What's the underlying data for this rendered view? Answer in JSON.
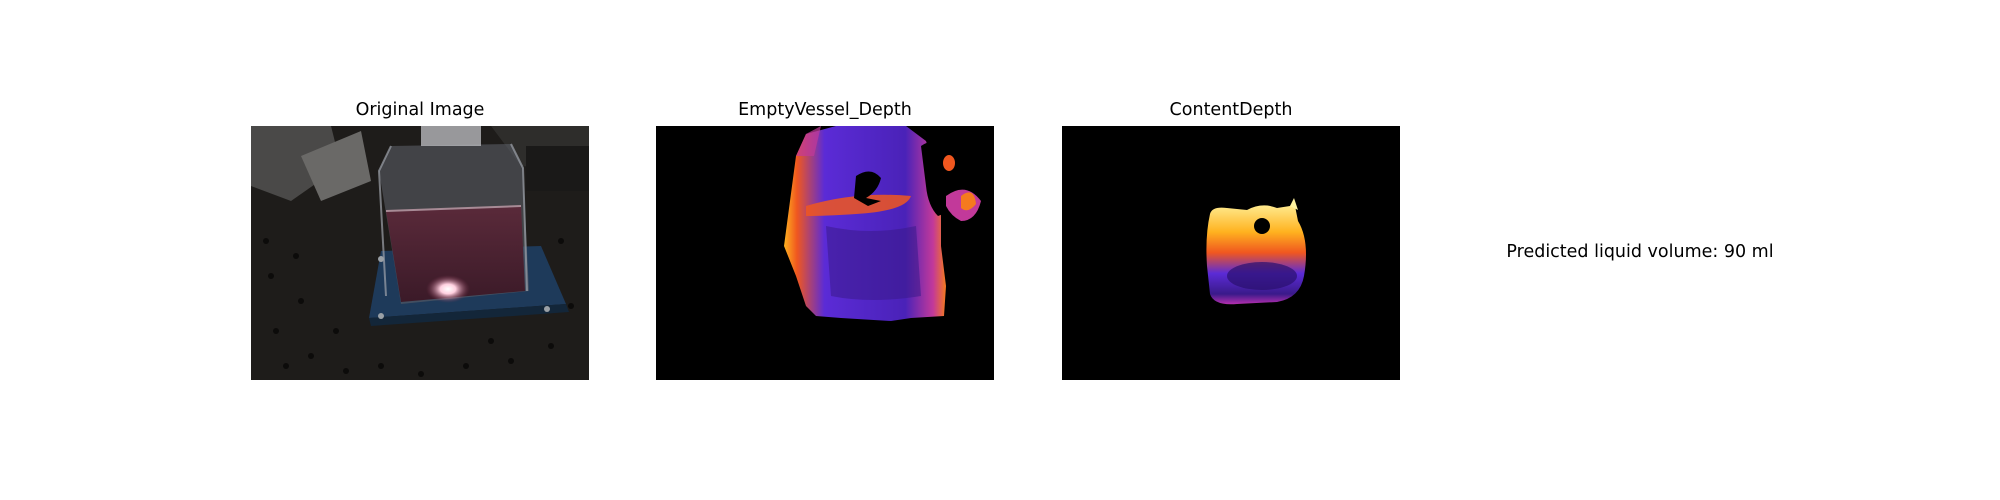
{
  "panels": [
    {
      "title": "Original Image"
    },
    {
      "title": "EmptyVessel_Depth"
    },
    {
      "title": "ContentDepth"
    }
  ],
  "result": {
    "text": "Predicted liquid volume: 90 ml"
  },
  "colors": {
    "background": "#ffffff",
    "depth_background": "#000000",
    "colormap": [
      "#2a0f6e",
      "#5b2bd6",
      "#b42fae",
      "#f0571f",
      "#ffb21f",
      "#fff3a0"
    ]
  }
}
